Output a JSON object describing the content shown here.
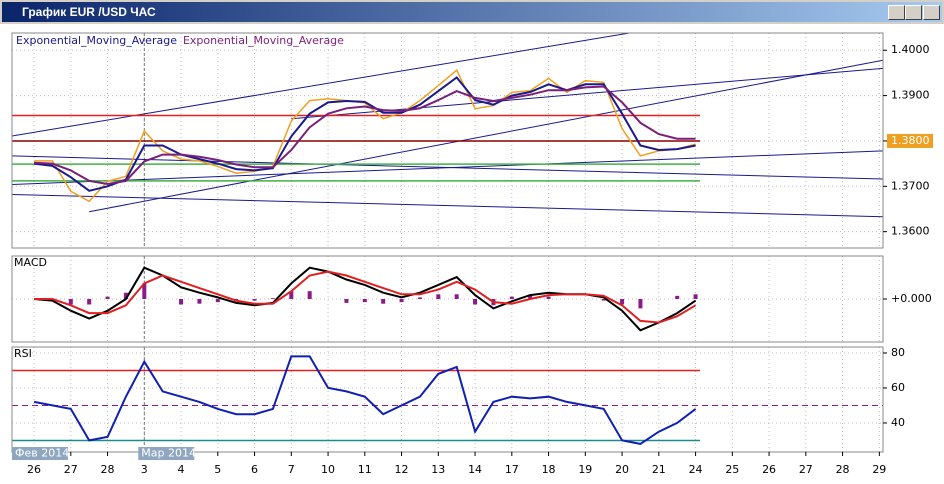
{
  "window": {
    "title": "График EUR /USD ЧАС"
  },
  "chart_data": [
    {
      "type": "line",
      "xlim": [
        -0.6,
        23.1
      ],
      "ylim": [
        1.3564,
        1.4038
      ],
      "yticks": [
        {
          "value": 1.36,
          "label": "1.3600"
        },
        {
          "value": 1.37,
          "label": "1.3700"
        },
        {
          "value": 1.38,
          "label": "1.3800"
        },
        {
          "value": 1.39,
          "label": "1.3900"
        },
        {
          "value": 1.4,
          "label": "1.4000"
        }
      ],
      "grid": true,
      "x": [
        0,
        0.5,
        1,
        1.5,
        2,
        2.5,
        3,
        3.5,
        4,
        4.5,
        5,
        5.5,
        6,
        6.5,
        7,
        7.5,
        8,
        8.5,
        9,
        9.5,
        10,
        10.5,
        11,
        11.5,
        12,
        12.5,
        13,
        13.5,
        14,
        14.5,
        15,
        15.5,
        16,
        16.5,
        17,
        17.5,
        18
      ],
      "series": [
        {
          "color": "#f0a020",
          "values": [
            1.3756,
            1.3756,
            1.3689,
            1.3667,
            1.3711,
            1.3722,
            1.3822,
            1.3778,
            1.376,
            1.3756,
            1.3744,
            1.3729,
            1.3733,
            1.3744,
            1.3844,
            1.3889,
            1.3893,
            1.3889,
            1.3884,
            1.3849,
            1.3862,
            1.3889,
            1.3922,
            1.3956,
            1.3871,
            1.3878,
            1.3907,
            1.3911,
            1.3938,
            1.3907,
            1.3933,
            1.3929,
            1.3827,
            1.3767,
            1.3778,
            1.3782,
            1.3793
          ]
        },
        {
          "name": "Exponential_Moving_Average",
          "color": "#1a1a8c",
          "values": [
            1.375,
            1.3745,
            1.372,
            1.369,
            1.37,
            1.3715,
            1.379,
            1.379,
            1.377,
            1.376,
            1.375,
            1.3738,
            1.3735,
            1.374,
            1.381,
            1.386,
            1.3885,
            1.3888,
            1.3886,
            1.3862,
            1.3862,
            1.388,
            1.391,
            1.394,
            1.389,
            1.388,
            1.39,
            1.3908,
            1.3925,
            1.3912,
            1.3925,
            1.3925,
            1.386,
            1.379,
            1.378,
            1.3782,
            1.379
          ]
        },
        {
          "name": "Exponential_Moving_Average",
          "color": "#7a1f7a",
          "values": [
            1.3752,
            1.375,
            1.3735,
            1.3712,
            1.3705,
            1.3712,
            1.3755,
            1.377,
            1.377,
            1.3765,
            1.3758,
            1.3748,
            1.3742,
            1.3742,
            1.378,
            1.383,
            1.386,
            1.3872,
            1.3876,
            1.3868,
            1.3866,
            1.3872,
            1.389,
            1.391,
            1.3895,
            1.3888,
            1.3895,
            1.3902,
            1.3912,
            1.3912,
            1.3918,
            1.392,
            1.3885,
            1.384,
            1.3815,
            1.3805,
            1.3805
          ]
        }
      ],
      "hlines": [
        {
          "value": 1.3856,
          "color": "#e02020"
        },
        {
          "value": 1.38,
          "color": "#8b0000"
        },
        {
          "value": 1.3749,
          "color": "#40b040"
        },
        {
          "value": 1.3712,
          "color": "#40b040"
        }
      ],
      "trendline_color": "#1a1a8c",
      "trendlines": [
        [
          -0.6,
          1.3811,
          16.2,
          1.4038
        ],
        [
          -0.6,
          1.3704,
          23.1,
          1.3778
        ],
        [
          -0.6,
          1.3682,
          23.1,
          1.3633
        ],
        [
          1.5,
          1.3644,
          23.1,
          1.3978
        ],
        [
          7,
          1.3849,
          23.1,
          1.396
        ],
        [
          -0.6,
          1.3767,
          23.1,
          1.3716
        ]
      ],
      "last_price": {
        "value": 1.38,
        "label": "1.3800",
        "color": "#f0a020"
      }
    },
    {
      "type": "line",
      "title": "MACD",
      "xlim": [
        -0.6,
        23.1
      ],
      "ylim": [
        -0.0055,
        0.0055
      ],
      "yticks": [
        {
          "value": 0,
          "label": "+0.000"
        }
      ],
      "grid": true,
      "x": [
        0,
        0.5,
        1,
        1.5,
        2,
        2.5,
        3,
        3.5,
        4,
        4.5,
        5,
        5.5,
        6,
        6.5,
        7,
        7.5,
        8,
        8.5,
        9,
        9.5,
        10,
        10.5,
        11,
        11.5,
        12,
        12.5,
        13,
        13.5,
        14,
        14.5,
        15,
        15.5,
        16,
        16.5,
        17,
        17.5,
        18
      ],
      "series": [
        {
          "style": "bar",
          "color": "#8b1a8b",
          "values": [
            0,
            -0.0002,
            -0.0007,
            -0.0007,
            0.0003,
            0.0008,
            0.002,
            0,
            -0.0007,
            -0.0006,
            -0.0004,
            -0.0003,
            -0.0002,
            0.0001,
            0.001,
            0.001,
            0,
            -0.0005,
            -0.0004,
            -0.0006,
            -0.0004,
            0.0002,
            0.0006,
            0.0006,
            -0.0007,
            -0.0008,
            0.0003,
            0.0005,
            0.0003,
            0,
            0,
            -0.0002,
            -0.0007,
            -0.0012,
            0,
            0.0004,
            0.0006
          ]
        },
        {
          "color": "#000000",
          "values": [
            0,
            -0.0002,
            -0.0015,
            -0.0025,
            -0.0015,
            0,
            0.004,
            0.003,
            0.0015,
            0.0008,
            0.0002,
            -0.0005,
            -0.0008,
            -0.0005,
            0.002,
            0.004,
            0.0035,
            0.0025,
            0.0018,
            0.0008,
            0.0002,
            0.0008,
            0.0018,
            0.0028,
            0.0005,
            -0.0012,
            -0.0003,
            0.0005,
            0.0008,
            0.0006,
            0.0006,
            0.0002,
            -0.0015,
            -0.004,
            -0.003,
            -0.0018,
            -0.0002
          ]
        },
        {
          "color": "#e02020",
          "values": [
            0,
            0,
            -0.0008,
            -0.0018,
            -0.0018,
            -0.0008,
            0.002,
            0.003,
            0.0022,
            0.0014,
            0.0006,
            -0.0002,
            -0.0006,
            -0.0006,
            0.001,
            0.003,
            0.0035,
            0.003,
            0.0022,
            0.0014,
            0.0006,
            0.0006,
            0.0012,
            0.0022,
            0.0012,
            -0.0004,
            -0.0006,
            0,
            0.0005,
            0.0006,
            0.0006,
            0.0004,
            -0.0008,
            -0.0028,
            -0.003,
            -0.0022,
            -0.0008
          ]
        }
      ]
    },
    {
      "type": "line",
      "title": "RSI",
      "xlim": [
        -0.6,
        23.1
      ],
      "ylim": [
        23.4,
        83.4
      ],
      "yticks": [
        40,
        60,
        80
      ],
      "grid": true,
      "x": [
        0,
        0.5,
        1,
        1.5,
        2,
        2.5,
        3,
        3.5,
        4,
        4.5,
        5,
        5.5,
        6,
        6.5,
        7,
        7.5,
        8,
        8.5,
        9,
        9.5,
        10,
        10.5,
        11,
        11.5,
        12,
        12.5,
        13,
        13.5,
        14,
        14.5,
        15,
        15.5,
        16,
        16.5,
        17,
        17.5,
        18
      ],
      "series": [
        {
          "color": "#1020b0",
          "values": [
            52,
            50,
            48,
            30,
            32,
            55,
            75,
            58,
            55,
            52,
            48,
            45,
            45,
            48,
            78,
            78,
            60,
            58,
            55,
            45,
            50,
            55,
            68,
            72,
            35,
            52,
            55,
            54,
            55,
            52,
            50,
            48,
            30,
            28,
            35,
            40,
            48
          ]
        }
      ],
      "hlines": [
        {
          "value": 70,
          "color": "#e02020"
        },
        {
          "value": 50,
          "color": "#8b1a8b",
          "dash": true
        },
        {
          "value": 30,
          "color": "#1a8c8c"
        }
      ],
      "xticks": [
        {
          "value": 0,
          "label": "26"
        },
        {
          "value": 1,
          "label": "27"
        },
        {
          "value": 2,
          "label": "28"
        },
        {
          "value": 3,
          "label": "3"
        },
        {
          "value": 4,
          "label": "4"
        },
        {
          "value": 5,
          "label": "5"
        },
        {
          "value": 6,
          "label": "6"
        },
        {
          "value": 7,
          "label": "7"
        },
        {
          "value": 8,
          "label": "10"
        },
        {
          "value": 9,
          "label": "11"
        },
        {
          "value": 10,
          "label": "12"
        },
        {
          "value": 11,
          "label": "13"
        },
        {
          "value": 12,
          "label": "14"
        },
        {
          "value": 13,
          "label": "17"
        },
        {
          "value": 14,
          "label": "18"
        },
        {
          "value": 15,
          "label": "19"
        },
        {
          "value": 16,
          "label": "20"
        },
        {
          "value": 17,
          "label": "21"
        },
        {
          "value": 18,
          "label": "24"
        },
        {
          "value": 19,
          "label": "25"
        },
        {
          "value": 20,
          "label": "26"
        },
        {
          "value": 21,
          "label": "27"
        },
        {
          "value": 22,
          "label": "28"
        },
        {
          "value": 23,
          "label": "29"
        }
      ],
      "month_tags": [
        {
          "value": -0.6,
          "label": "Фев 2014"
        },
        {
          "value": 3,
          "label": "Мар 2014"
        }
      ]
    }
  ]
}
